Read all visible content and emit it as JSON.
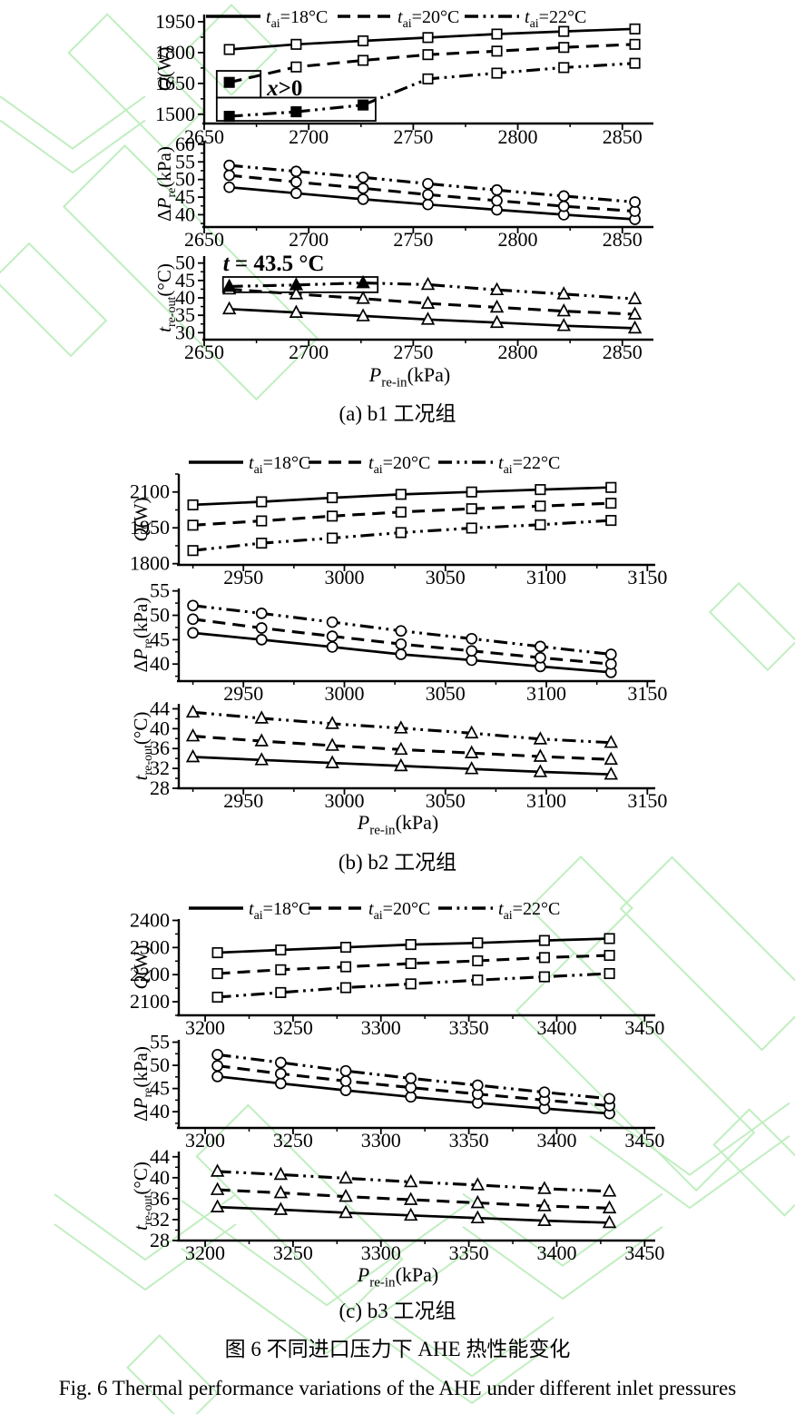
{
  "page": {
    "background": "#ffffff",
    "watermark_color": "#b9edb9",
    "ink_color": "#000000"
  },
  "captions": {
    "panel_a": "(a) b1 工况组",
    "panel_b": "(b) b2 工况组",
    "panel_c": "(c) b3 工况组",
    "figure_cn": "图 6 不同进口压力下 AHE 热性能变化",
    "figure_en": "Fig. 6 Thermal performance variations of the AHE under different inlet pressures"
  },
  "chart_data": [
    {
      "id": "a",
      "type": "line",
      "title": "(a) b1 工况组",
      "xlabel": "*P*_{re-in}(kPa)",
      "xlim": [
        2650,
        2864
      ],
      "xticks": [
        2650,
        2700,
        2750,
        2800,
        2850
      ],
      "x_minor_step": 25,
      "x": [
        2662,
        2694,
        2726,
        2757,
        2790,
        2822,
        2856
      ],
      "legend": [
        {
          "label": "*t*_{ai}=18°C",
          "style": "solid"
        },
        {
          "label": "*t*_{ai}=20°C",
          "style": "dashed"
        },
        {
          "label": "*t*_{ai}=22°C",
          "style": "dashdotdot"
        }
      ],
      "subplots": [
        {
          "ylabel": "*Q*(W)",
          "ylim": [
            1455,
            1985
          ],
          "yticks": [
            1500,
            1650,
            1800,
            1950
          ],
          "y_minor_step": 75,
          "marker": "square",
          "series": [
            {
              "name": "*t*_{ai}=18°C",
              "style": "solid",
              "values": [
                1815,
                1840,
                1857,
                1873,
                1890,
                1903,
                1915
              ]
            },
            {
              "name": "*t*_{ai}=20°C",
              "style": "dashed",
              "values": [
                1655,
                1730,
                1762,
                1790,
                1807,
                1825,
                1840
              ],
              "filled": [
                0
              ]
            },
            {
              "name": "*t*_{ai}=22°C",
              "style": "dashdotdot",
              "values": [
                1490,
                1512,
                1545,
                1672,
                1700,
                1727,
                1748
              ],
              "filled": [
                0,
                1,
                2
              ]
            }
          ],
          "annotations": [
            {
              "type": "rect",
              "x": [
                2656,
                2677
              ],
              "y": [
                1581,
                1711
              ]
            },
            {
              "type": "rect",
              "x": [
                2656,
                2732
              ],
              "y": [
                1468,
                1581
              ]
            },
            {
              "type": "text",
              "text": "*x*>0",
              "x": 2680,
              "y": 1593,
              "bold": true,
              "size": 25
            }
          ]
        },
        {
          "ylabel": "Δ*P*_{re}(kPa)",
          "ylim": [
            36.5,
            61
          ],
          "yticks": [
            40,
            45,
            50,
            55,
            60
          ],
          "y_minor_step": 2.5,
          "marker": "circle",
          "series": [
            {
              "name": "*t*_{ai}=18°C",
              "style": "solid",
              "values": [
                47.8,
                46.1,
                44.4,
                42.9,
                41.4,
                40,
                38.7
              ]
            },
            {
              "name": "*t*_{ai}=20°C",
              "style": "dashed",
              "values": [
                51.2,
                49.3,
                47.5,
                45.7,
                44,
                42.4,
                41
              ]
            },
            {
              "name": "*t*_{ai}=22°C",
              "style": "dashdotdot",
              "values": [
                54,
                52.3,
                50.6,
                48.8,
                47,
                45.3,
                43.6
              ]
            }
          ]
        },
        {
          "ylabel": "*t*_{re-out}(°C)",
          "ylim": [
            28,
            52
          ],
          "yticks": [
            30,
            35,
            40,
            45,
            50
          ],
          "y_minor_step": 2.5,
          "marker": "triangle",
          "series": [
            {
              "name": "*t*_{ai}=18°C",
              "style": "solid",
              "values": [
                36.8,
                35.8,
                34.8,
                33.8,
                32.9,
                32,
                31.3
              ]
            },
            {
              "name": "*t*_{ai}=20°C",
              "style": "dashed",
              "values": [
                42.5,
                41.1,
                39.8,
                38.4,
                37.3,
                36.2,
                35.3
              ]
            },
            {
              "name": "*t*_{ai}=22°C",
              "style": "dashdotdot",
              "values": [
                43.3,
                43.7,
                44.3,
                43.8,
                42.3,
                41.1,
                39.7
              ],
              "filled": [
                0,
                1,
                2
              ]
            }
          ],
          "annotations": [
            {
              "type": "rect",
              "x": [
                2659,
                2733
              ],
              "y": [
                41.6,
                46
              ]
            },
            {
              "type": "text",
              "text": "*t* = 43.5 °C",
              "x": 2659,
              "y": 47.8,
              "bold": true,
              "size": 25
            }
          ]
        }
      ]
    },
    {
      "id": "b",
      "type": "line",
      "title": "(b) b2 工况组",
      "xlabel": "*P*_{re-in}(kPa)",
      "xlim": [
        2918,
        3153
      ],
      "xticks": [
        2950,
        3000,
        3050,
        3100,
        3150
      ],
      "x_minor_step": 25,
      "x": [
        2925,
        2959,
        2994,
        3028,
        3063,
        3097,
        3132
      ],
      "legend": [
        {
          "label": "*t*_{ai}=18°C",
          "style": "solid"
        },
        {
          "label": "*t*_{ai}=20°C",
          "style": "dashed"
        },
        {
          "label": "*t*_{ai}=22°C",
          "style": "dashdotdot"
        }
      ],
      "subplots": [
        {
          "ylabel": "*Q*(W)",
          "ylim": [
            1795,
            2175
          ],
          "yticks": [
            1800,
            1950,
            2100
          ],
          "y_minor_step": 75,
          "marker": "square",
          "series": [
            {
              "name": "*t*_{ai}=18°C",
              "style": "solid",
              "values": [
                2046,
                2059,
                2076,
                2090,
                2100,
                2110,
                2119
              ]
            },
            {
              "name": "*t*_{ai}=20°C",
              "style": "dashed",
              "values": [
                1961,
                1979,
                1999,
                2016,
                2030,
                2041,
                2053
              ]
            },
            {
              "name": "*t*_{ai}=22°C",
              "style": "dashdotdot",
              "values": [
                1855,
                1886,
                1907,
                1930,
                1949,
                1963,
                1981
              ]
            }
          ]
        },
        {
          "ylabel": "Δ*P*_{re}(kPa)",
          "ylim": [
            36.5,
            55.5
          ],
          "yticks": [
            40,
            45,
            50,
            55
          ],
          "y_minor_step": 2.5,
          "marker": "circle",
          "series": [
            {
              "name": "*t*_{ai}=18°C",
              "style": "solid",
              "values": [
                46.4,
                45,
                43.5,
                42,
                40.8,
                39.5,
                38.3
              ]
            },
            {
              "name": "*t*_{ai}=20°C",
              "style": "dashed",
              "values": [
                49.2,
                47.4,
                45.7,
                44.1,
                42.7,
                41.3,
                40
              ]
            },
            {
              "name": "*t*_{ai}=22°C",
              "style": "dashdotdot",
              "values": [
                52,
                50.4,
                48.6,
                46.8,
                45.2,
                43.6,
                42
              ]
            }
          ]
        },
        {
          "ylabel": "*t*_{re-out}(°C)",
          "ylim": [
            28,
            45
          ],
          "yticks": [
            28,
            32,
            36,
            40,
            44
          ],
          "y_minor_step": 2,
          "marker": "triangle",
          "series": [
            {
              "name": "*t*_{ai}=18°C",
              "style": "solid",
              "values": [
                34.3,
                33.7,
                33.1,
                32.5,
                31.9,
                31.3,
                30.8
              ]
            },
            {
              "name": "*t*_{ai}=20°C",
              "style": "dashed",
              "values": [
                38.5,
                37.5,
                36.6,
                35.8,
                35.1,
                34.4,
                33.8
              ]
            },
            {
              "name": "*t*_{ai}=22°C",
              "style": "dashdotdot",
              "values": [
                43.3,
                42.1,
                41,
                40.1,
                39.1,
                37.9,
                37.2
              ]
            }
          ]
        }
      ]
    },
    {
      "id": "c",
      "type": "line",
      "title": "(c) b3 工况组",
      "xlabel": "*P*_{re-in}(kPa)",
      "xlim": [
        3185,
        3455
      ],
      "xticks": [
        3200,
        3250,
        3300,
        3350,
        3400,
        3450
      ],
      "x_minor_step": 25,
      "x": [
        3207,
        3243,
        3280,
        3317,
        3355,
        3393,
        3430
      ],
      "legend": [
        {
          "label": "*t*_{ai}=18°C",
          "style": "solid"
        },
        {
          "label": "*t*_{ai}=20°C",
          "style": "dashed"
        },
        {
          "label": "*t*_{ai}=22°C",
          "style": "dashdotdot"
        }
      ],
      "subplots": [
        {
          "ylabel": "*Q*(W)",
          "ylim": [
            2050,
            2405
          ],
          "yticks": [
            2100,
            2200,
            2300,
            2400
          ],
          "y_minor_step": 50,
          "marker": "square",
          "series": [
            {
              "name": "*t*_{ai}=18°C",
              "style": "solid",
              "values": [
                2281,
                2291,
                2301,
                2311,
                2317,
                2326,
                2333
              ]
            },
            {
              "name": "*t*_{ai}=20°C",
              "style": "dashed",
              "values": [
                2204,
                2218,
                2229,
                2241,
                2251,
                2263,
                2271
              ]
            },
            {
              "name": "*t*_{ai}=22°C",
              "style": "dashdotdot",
              "values": [
                2117,
                2134,
                2152,
                2166,
                2180,
                2192,
                2204
              ]
            }
          ]
        },
        {
          "ylabel": "Δ*P*_{re}(kPa)",
          "ylim": [
            36.5,
            55.5
          ],
          "yticks": [
            40,
            45,
            50,
            55
          ],
          "y_minor_step": 2.5,
          "marker": "circle",
          "series": [
            {
              "name": "*t*_{ai}=18°C",
              "style": "solid",
              "values": [
                47.6,
                46.1,
                44.6,
                43.2,
                41.9,
                40.7,
                39.6
              ]
            },
            {
              "name": "*t*_{ai}=20°C",
              "style": "dashed",
              "values": [
                49.9,
                48.2,
                46.6,
                45.2,
                43.8,
                42.5,
                41.3
              ]
            },
            {
              "name": "*t*_{ai}=22°C",
              "style": "dashdotdot",
              "values": [
                52.3,
                50.6,
                48.8,
                47.2,
                45.7,
                44.2,
                42.8
              ]
            }
          ]
        },
        {
          "ylabel": "*t*_{re-out}(°C)",
          "ylim": [
            28,
            45
          ],
          "yticks": [
            28,
            32,
            36,
            40,
            44
          ],
          "y_minor_step": 2,
          "marker": "triangle",
          "series": [
            {
              "name": "*t*_{ai}=18°C",
              "style": "solid",
              "values": [
                34.4,
                33.9,
                33.3,
                32.8,
                32.3,
                31.8,
                31.4
              ]
            },
            {
              "name": "*t*_{ai}=20°C",
              "style": "dashed",
              "values": [
                37.7,
                37.1,
                36.4,
                35.8,
                35.2,
                34.6,
                34.2
              ]
            },
            {
              "name": "*t*_{ai}=22°C",
              "style": "dashdotdot",
              "values": [
                41.2,
                40.6,
                39.9,
                39.2,
                38.6,
                37.9,
                37.4
              ]
            }
          ]
        }
      ]
    }
  ]
}
